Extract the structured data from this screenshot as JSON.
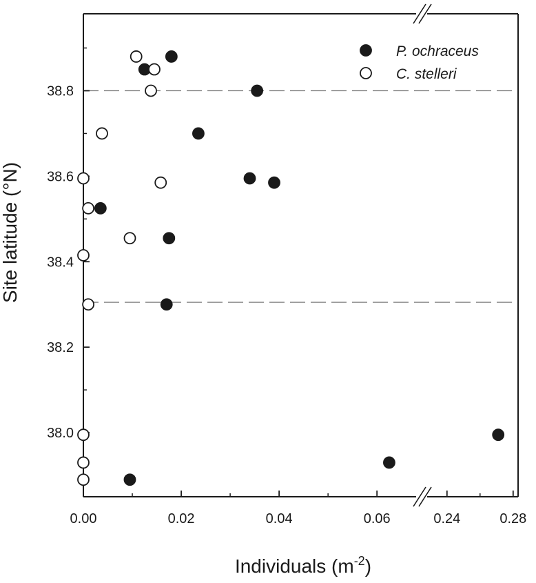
{
  "chart_data": {
    "type": "scatter",
    "xlabel_main": "Individuals (m",
    "xlabel_sup": "-2",
    "xlabel_close": ")",
    "ylabel": "Site latitude (°N)",
    "ylim": [
      37.85,
      38.98
    ],
    "x_axis_break": {
      "segment1": [
        0.0,
        0.068
      ],
      "segment2": [
        0.228,
        0.283
      ]
    },
    "x_ticks": [
      {
        "value": 0.0,
        "label": "0.00"
      },
      {
        "value": 0.02,
        "label": "0.02"
      },
      {
        "value": 0.04,
        "label": "0.04"
      },
      {
        "value": 0.06,
        "label": "0.06"
      },
      {
        "value": 0.24,
        "label": "0.24"
      },
      {
        "value": 0.28,
        "label": "0.28"
      }
    ],
    "y_ticks": [
      {
        "value": 38.0,
        "label": "38.0"
      },
      {
        "value": 38.2,
        "label": "38.2"
      },
      {
        "value": 38.4,
        "label": "38.4"
      },
      {
        "value": 38.6,
        "label": "38.6"
      },
      {
        "value": 38.8,
        "label": "38.8"
      }
    ],
    "x_minor_ticks": [
      0.01,
      0.03,
      0.05,
      0.26
    ],
    "y_minor_ticks": [
      37.9,
      38.1,
      38.3,
      38.5,
      38.7,
      38.9
    ],
    "reference_lines": [
      38.8,
      38.305
    ],
    "legend_position": "top-right",
    "series": [
      {
        "name": "P. ochraceus",
        "marker": "filled-circle",
        "color": "#1a1a1a",
        "points": [
          {
            "x": 0.018,
            "y": 38.88
          },
          {
            "x": 0.0125,
            "y": 38.85
          },
          {
            "x": 0.0355,
            "y": 38.8
          },
          {
            "x": 0.0235,
            "y": 38.7
          },
          {
            "x": 0.034,
            "y": 38.595
          },
          {
            "x": 0.039,
            "y": 38.585
          },
          {
            "x": 0.0035,
            "y": 38.525
          },
          {
            "x": 0.0175,
            "y": 38.455
          },
          {
            "x": 0.017,
            "y": 38.3
          },
          {
            "x": 0.0095,
            "y": 37.89
          },
          {
            "x": 0.0625,
            "y": 37.93
          },
          {
            "x": 0.271,
            "y": 37.995
          }
        ]
      },
      {
        "name": "C. stelleri",
        "marker": "open-circle",
        "color": "#1a1a1a",
        "points": [
          {
            "x": 0.0108,
            "y": 38.88
          },
          {
            "x": 0.0145,
            "y": 38.85
          },
          {
            "x": 0.0138,
            "y": 38.8
          },
          {
            "x": 0.0038,
            "y": 38.7
          },
          {
            "x": 0.0,
            "y": 38.595
          },
          {
            "x": 0.0158,
            "y": 38.585
          },
          {
            "x": 0.001,
            "y": 38.525
          },
          {
            "x": 0.0095,
            "y": 38.455
          },
          {
            "x": 0.0,
            "y": 38.415
          },
          {
            "x": 0.001,
            "y": 38.3
          },
          {
            "x": 0.0,
            "y": 37.995
          },
          {
            "x": 0.0,
            "y": 37.93
          },
          {
            "x": 0.0,
            "y": 37.89
          }
        ]
      }
    ]
  }
}
